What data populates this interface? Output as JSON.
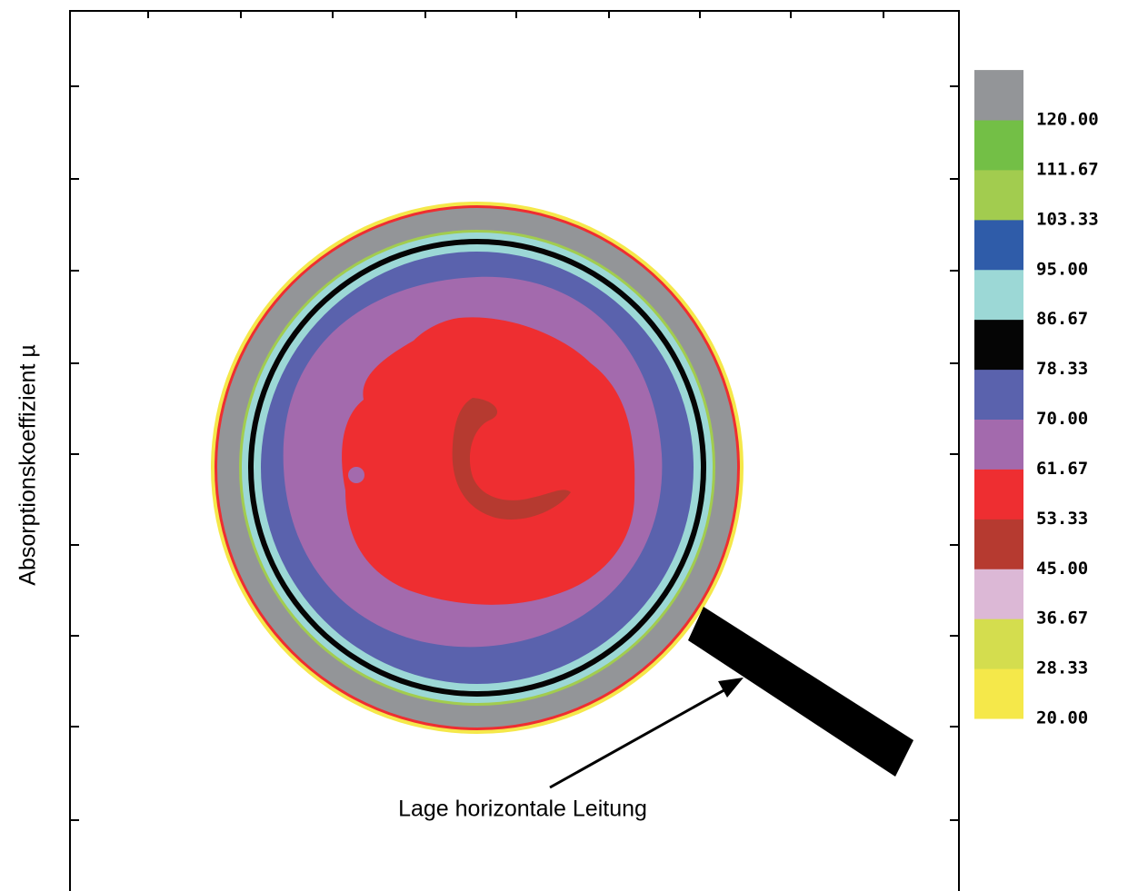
{
  "chart_data": {
    "type": "contour",
    "y_label": "Absorptionskoeffizient µ",
    "annotation": "Lage horizontale Leitung",
    "colorbar": {
      "ticks": [
        {
          "value": 20,
          "label": "20.00"
        },
        {
          "value": 28.33,
          "label": "28.33"
        },
        {
          "value": 36.67,
          "label": "36.67"
        },
        {
          "value": 45,
          "label": "45.00"
        },
        {
          "value": 53.33,
          "label": "53.33"
        },
        {
          "value": 61.67,
          "label": "61.67"
        },
        {
          "value": 70,
          "label": "70.00"
        },
        {
          "value": 78.33,
          "label": "78.33"
        },
        {
          "value": 86.67,
          "label": "86.67"
        },
        {
          "value": 95,
          "label": "95.00"
        },
        {
          "value": 103.33,
          "label": "103.33"
        },
        {
          "value": 111.67,
          "label": "111.67"
        },
        {
          "value": 120,
          "label": "120.00"
        }
      ],
      "colors": [
        "#f5e84a",
        "#d4dd4e",
        "#dcb8d6",
        "#b63a30",
        "#ee2e31",
        "#a36aad",
        "#5a62ad",
        "#050505",
        "#9cd8d6",
        "#2f5ca9",
        "#a2cc4f",
        "#73bf46",
        "#939598"
      ]
    }
  }
}
